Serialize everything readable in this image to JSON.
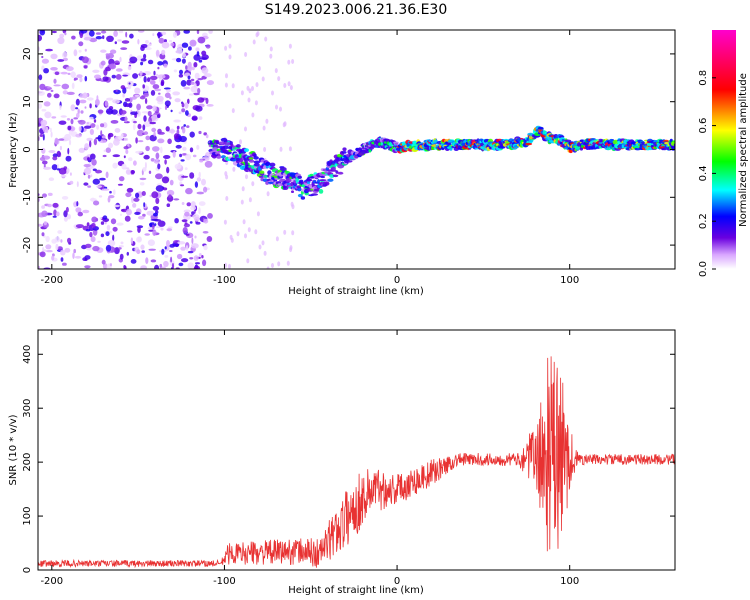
{
  "title": "S149.2023.006.21.36.E30",
  "chart_data": [
    {
      "type": "heatmap",
      "xlabel": "Height of straight line (km)",
      "ylabel": "Frequency (Hz)",
      "xlim": [
        -208,
        161
      ],
      "ylim": [
        -25,
        25
      ],
      "xticks": [
        -200,
        -100,
        0,
        100
      ],
      "yticks": [
        -20,
        -10,
        0,
        10,
        20
      ],
      "colorbar": {
        "label": "Normalized spectral amplitude",
        "range": [
          0,
          1
        ],
        "ticks": [
          "0.0",
          "0.2",
          "0.4",
          "0.6",
          "0.8"
        ],
        "colormap": "rainbow (white-violet-blue-cyan-green-yellow-red-magenta)"
      },
      "ridge": {
        "x": [
          -108,
          -95,
          -85,
          -75,
          -65,
          -55,
          -45,
          -40,
          -30,
          -20,
          -10,
          0,
          20,
          40,
          60,
          75,
          82,
          90,
          95,
          100,
          110,
          130,
          161
        ],
        "freq": [
          0.5,
          -0.5,
          -2.5,
          -5,
          -6,
          -8,
          -7,
          -5,
          -2,
          0,
          1.5,
          0.5,
          1,
          1,
          1,
          1.5,
          4,
          2,
          2,
          0.5,
          1.2,
          1,
          1
        ]
      }
    },
    {
      "type": "line",
      "xlabel": "Height of straight line (km)",
      "ylabel": "SNR (10 * v/v)",
      "xlim": [
        -208,
        161
      ],
      "ylim": [
        0,
        445
      ],
      "xticks": [
        -200,
        -100,
        0,
        100
      ],
      "yticks": [
        0,
        100,
        200,
        300,
        400
      ],
      "color": "#e83232",
      "envelope": {
        "x": [
          -208,
          -102,
          -98,
          -55,
          -45,
          -25,
          -15,
          0,
          20,
          35,
          70,
          75,
          82,
          88,
          95,
          100,
          105,
          161
        ],
        "level": [
          12,
          12,
          30,
          35,
          30,
          115,
          150,
          150,
          180,
          205,
          205,
          210,
          205,
          215,
          200,
          210,
          205,
          205
        ],
        "noise": [
          6,
          6,
          20,
          25,
          30,
          60,
          45,
          30,
          25,
          12,
          12,
          35,
          80,
          200,
          180,
          60,
          10,
          10
        ]
      }
    }
  ]
}
